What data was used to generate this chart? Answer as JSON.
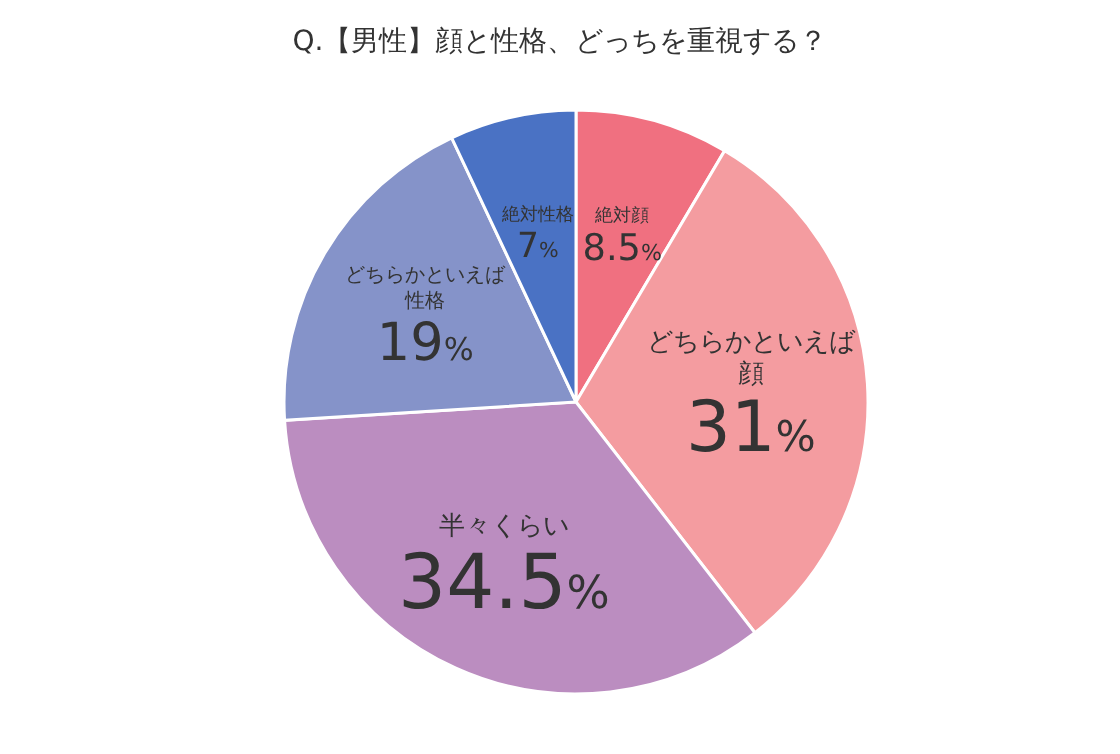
{
  "chart_data": {
    "type": "pie",
    "title": "Q.【男性】顔と性格、どっちを重視する？",
    "categories": [
      "絶対顔",
      "どちらかといえば顔",
      "半々くらい",
      "どちらかといえば性格",
      "絶対性格"
    ],
    "values": [
      8.5,
      31,
      34.5,
      19,
      7
    ],
    "colors": [
      "#f07080",
      "#f49ca0",
      "#bb8dc0",
      "#8593c9",
      "#4a72c4"
    ],
    "value_labels": [
      "8.5%",
      "31%",
      "34.5%",
      "19%",
      "7%"
    ],
    "legend": false
  }
}
